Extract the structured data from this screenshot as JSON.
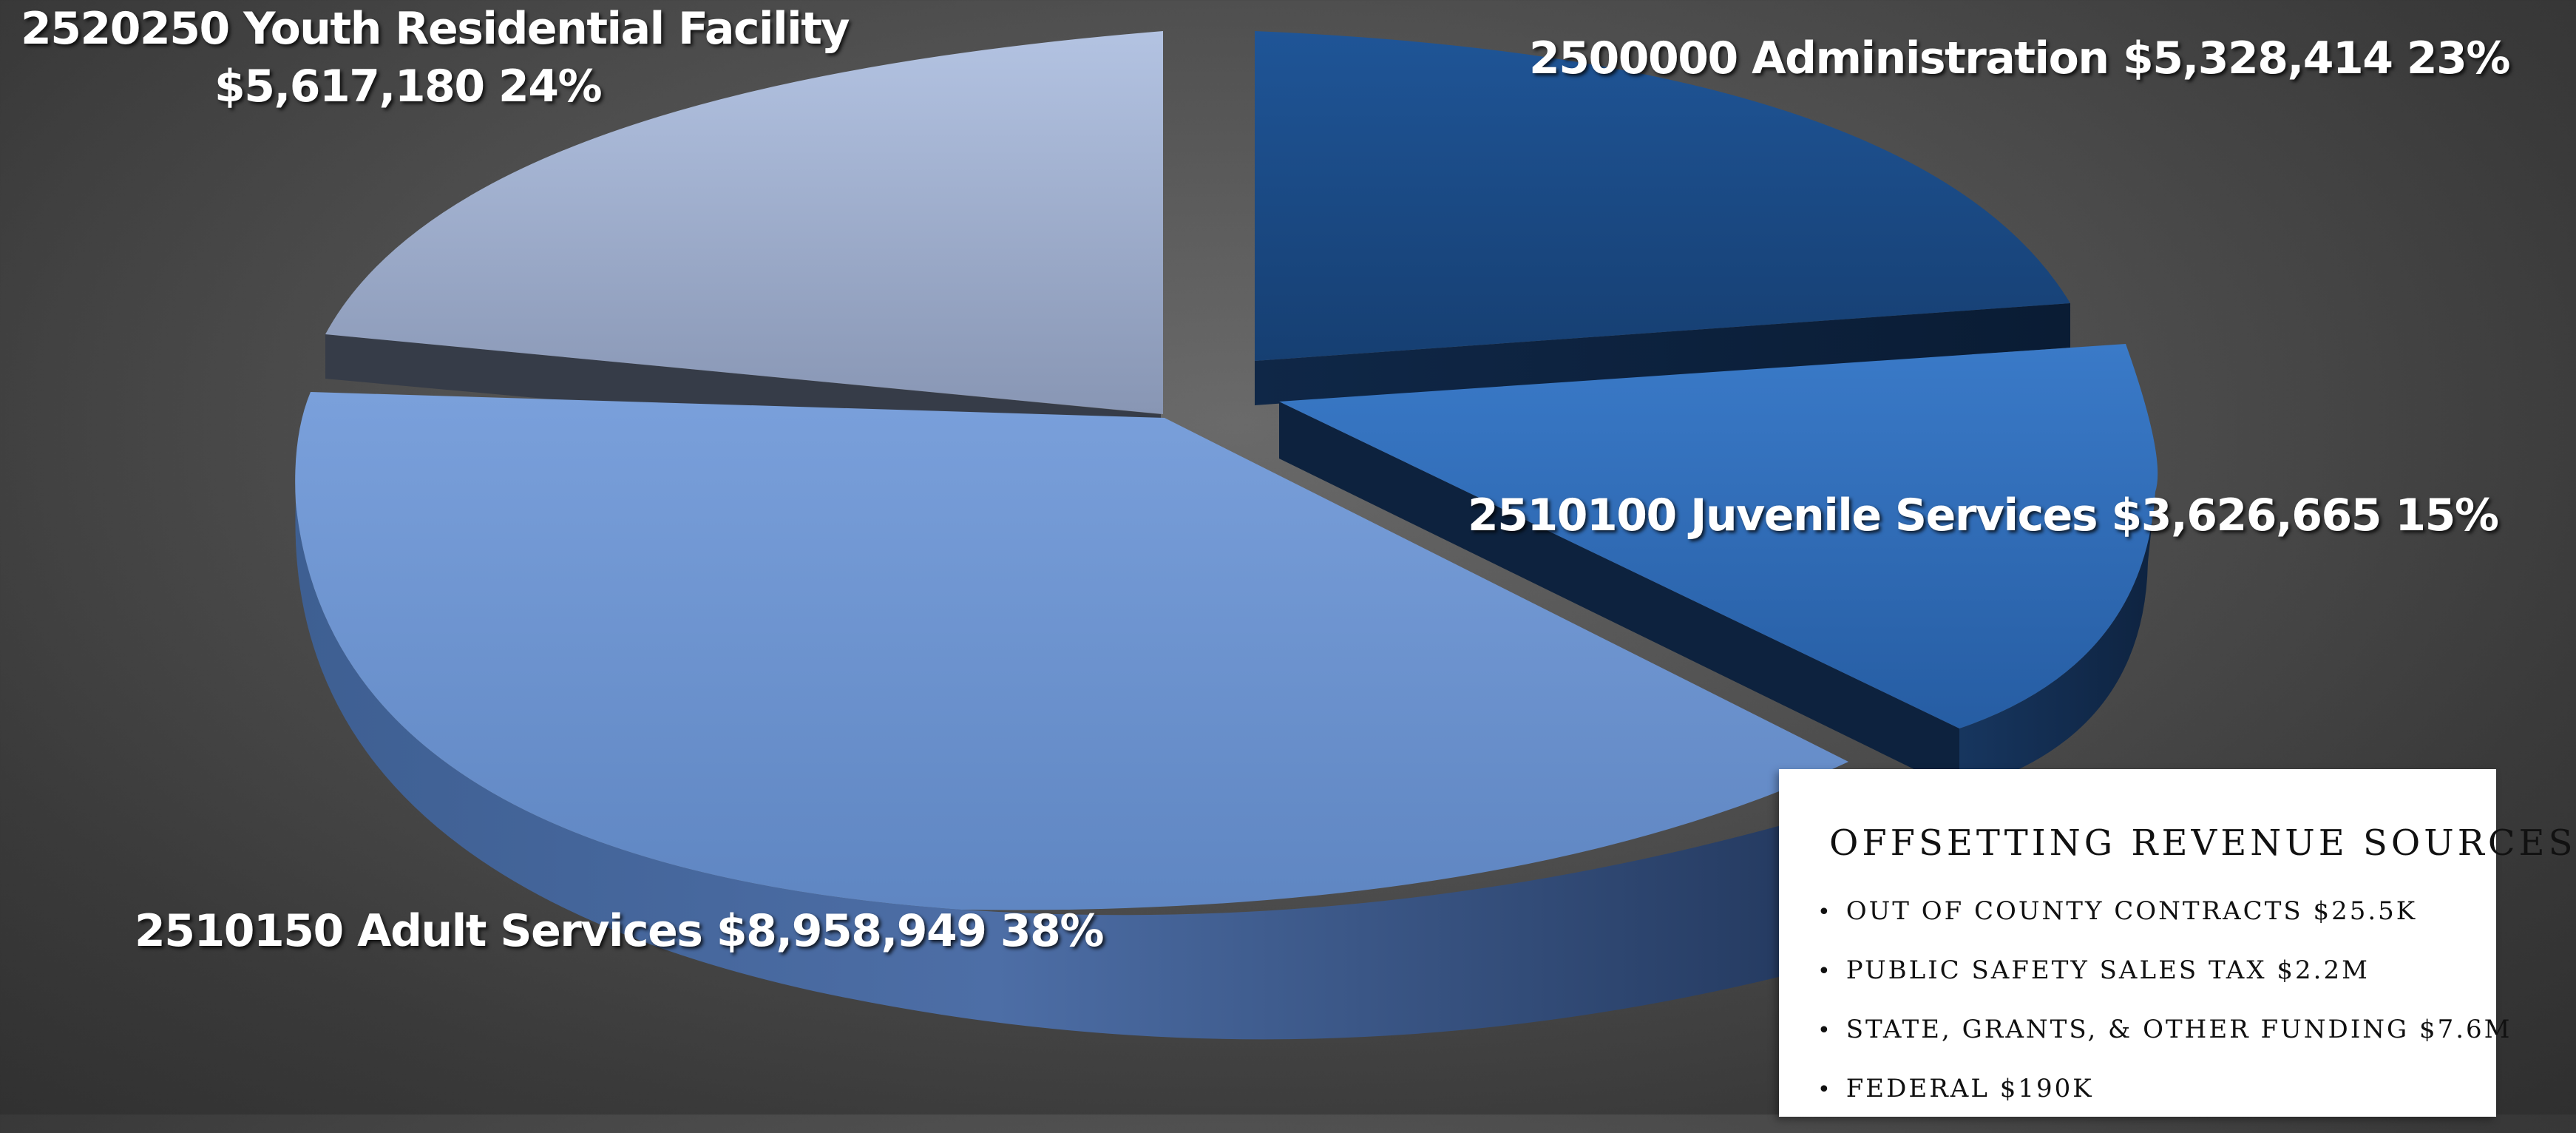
{
  "chart_data": {
    "type": "pie",
    "style": "3d-exploded",
    "slices": [
      {
        "code": "2500000",
        "name": "Administration",
        "amount": "$5,328,414",
        "percent": "23%",
        "value": 5328414,
        "color": "#1d4f8c"
      },
      {
        "code": "2510100",
        "name": "Juvenile Services",
        "amount": "$3,626,665",
        "percent": "15%",
        "value": 3626665,
        "color": "#2f6cb8"
      },
      {
        "code": "2510150",
        "name": "Adult Services",
        "amount": "$8,958,949",
        "percent": "38%",
        "value": 8958949,
        "color": "#6a92cf"
      },
      {
        "code": "2520250",
        "name": "Youth Residential Facility",
        "amount": "$5,617,180",
        "percent": "24%",
        "value": 5617180,
        "color": "#a2b2d3"
      }
    ]
  },
  "revenue_box": {
    "title": "OFFSETTING REVENUE SOURCES",
    "items": [
      "OUT OF COUNTY CONTRACTS $25.5K",
      "PUBLIC SAFETY SALES TAX $2.2M",
      "STATE, GRANTS, & OTHER FUNDING $7.6M",
      "FEDERAL $190K"
    ]
  }
}
